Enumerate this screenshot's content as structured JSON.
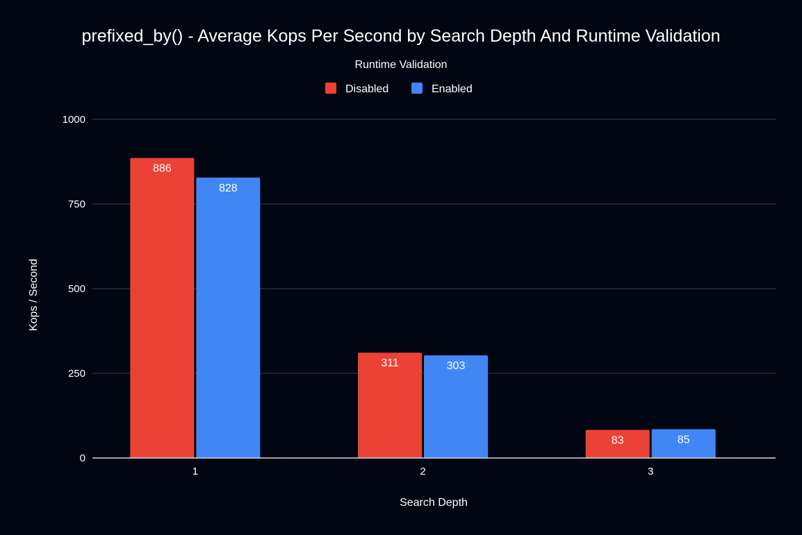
{
  "chart_data": {
    "type": "bar",
    "title": "prefixed_by() - Average Kops Per Second by Search Depth And Runtime Validation",
    "legend_title": "Runtime Validation",
    "legend_position": "top",
    "xlabel": "Search Depth",
    "ylabel": "Kops / Second",
    "categories": [
      "1",
      "2",
      "3"
    ],
    "series": [
      {
        "name": "Disabled",
        "color": "#ea4335",
        "values": [
          886,
          311,
          83
        ]
      },
      {
        "name": "Enabled",
        "color": "#4285f4",
        "values": [
          828,
          303,
          85
        ]
      }
    ],
    "ylim": [
      0,
      1000
    ],
    "yticks": [
      0,
      250,
      500,
      750,
      1000
    ],
    "grid": true
  }
}
